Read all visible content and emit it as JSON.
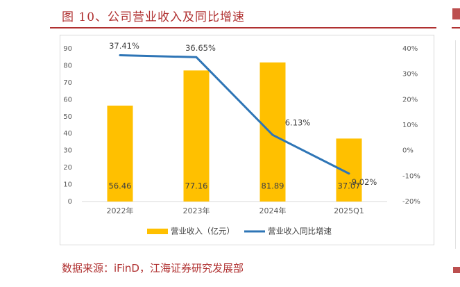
{
  "header": {
    "title": "图 10、公司营业收入及同比增速"
  },
  "footer": {
    "source_prefix": "数据来源：",
    "source_main": "iFinD",
    "source_suffix": "，江海证券研究发展部"
  },
  "colors": {
    "bar": "#FFC000",
    "line": "#2E75B6",
    "accent": "#B03030",
    "axis_text": "#595959",
    "label_text": "#404040"
  },
  "chart_data": {
    "type": "bar",
    "categories": [
      "2022年",
      "2023年",
      "2024年",
      "2025Q1"
    ],
    "series": [
      {
        "name": "营业收入（亿元）",
        "type": "bar",
        "axis": "left",
        "values": [
          56.46,
          77.16,
          81.89,
          37.07
        ],
        "labels": [
          "56.46",
          "77.16",
          "81.89",
          "37.07"
        ]
      },
      {
        "name": "营业收入同比增速",
        "type": "line",
        "axis": "right",
        "values": [
          37.41,
          36.65,
          6.13,
          -9.02
        ],
        "labels": [
          "37.41%",
          "36.65%",
          "6.13%",
          "-9.02%"
        ]
      }
    ],
    "y_left": {
      "min": 0,
      "max": 90,
      "ticks": [
        "0",
        "10",
        "20",
        "30",
        "40",
        "50",
        "60",
        "70",
        "80",
        "90"
      ]
    },
    "y_right": {
      "min": -20,
      "max": 40,
      "unit": "%",
      "ticks": [
        "-20%",
        "-10%",
        "0%",
        "10%",
        "20%",
        "30%",
        "40%"
      ]
    },
    "grid": false,
    "legend": "bottom"
  }
}
